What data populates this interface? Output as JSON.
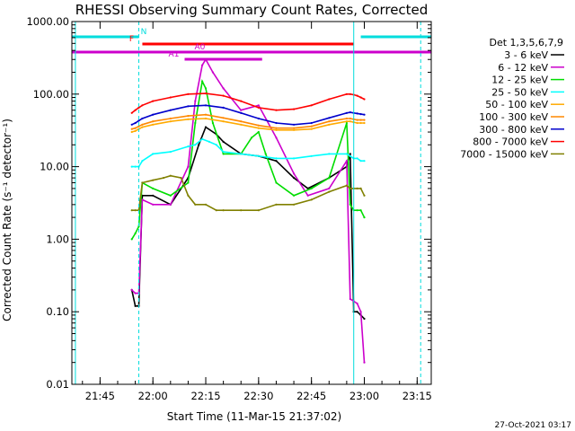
{
  "title": "RHESSI Observing Summary Count Rates, Corrected",
  "xlabel": "Start Time (11-Mar-15 21:37:02)",
  "ylabel": "Corrected Count Rate (s⁻¹ detector⁻¹)",
  "footer_date": "27-Oct-2021 03:17",
  "chart_data": {
    "type": "line",
    "title": "RHESSI Observing Summary Count Rates, Corrected",
    "xlabel": "Start Time (11-Mar-15 21:37:02)",
    "ylabel": "Corrected Count Rate (s^-1 detector^-1)",
    "yscale": "log",
    "ylim": [
      0.01,
      1000
    ],
    "xlim_minutes_of_day": [
      1297,
      1399
    ],
    "x_ticks": [
      {
        "label": "21:45",
        "t": 1305
      },
      {
        "label": "22:00",
        "t": 1320
      },
      {
        "label": "22:15",
        "t": 1335
      },
      {
        "label": "22:30",
        "t": 1350
      },
      {
        "label": "22:45",
        "t": 1365
      },
      {
        "label": "23:00",
        "t": 1380
      },
      {
        "label": "23:15",
        "t": 1395
      }
    ],
    "y_ticks": [
      {
        "label": "1000.00",
        "v": 1000
      },
      {
        "label": "100.00",
        "v": 100
      },
      {
        "label": "10.00",
        "v": 10
      },
      {
        "label": "1.00",
        "v": 1
      },
      {
        "label": "0.10",
        "v": 0.1
      },
      {
        "label": "0.01",
        "v": 0.01
      }
    ],
    "legend_title": "Det 1,3,5,6,7,9",
    "legend_placement": "right",
    "series": [
      {
        "name": "3 - 6 keV",
        "color": "#000000",
        "x": [
          "21:54",
          "21:55",
          "21:56",
          "21:57",
          "22:00",
          "22:05",
          "22:10",
          "22:13",
          "22:15",
          "22:18",
          "22:20",
          "22:25",
          "22:30",
          "22:35",
          "22:40",
          "22:44",
          "22:50",
          "22:55",
          "22:56",
          "22:57",
          "22:58",
          "22:59",
          "23:00"
        ],
        "y": [
          0.2,
          0.12,
          0.12,
          4,
          4,
          3,
          7,
          20,
          35,
          28,
          22,
          15,
          14,
          12,
          7,
          5,
          7,
          10,
          15,
          0.1,
          0.1,
          0.09,
          0.08
        ]
      },
      {
        "name": "6 - 12 keV",
        "color": "#cc00cc",
        "x": [
          "21:54",
          "21:55",
          "21:56",
          "21:57",
          "22:00",
          "22:05",
          "22:10",
          "22:12",
          "22:14",
          "22:15",
          "22:17",
          "22:20",
          "22:25",
          "22:30",
          "22:35",
          "22:40",
          "22:44",
          "22:50",
          "22:55",
          "22:56",
          "22:57",
          "22:58",
          "22:59",
          "23:00"
        ],
        "y": [
          0.2,
          0.18,
          0.18,
          3.5,
          3,
          3,
          10,
          80,
          250,
          300,
          200,
          120,
          60,
          70,
          25,
          8,
          4,
          5,
          12,
          0.15,
          0.14,
          0.13,
          0.1,
          0.02
        ]
      },
      {
        "name": "12 - 25 keV",
        "color": "#00dd00",
        "x": [
          "21:54",
          "21:55",
          "21:56",
          "21:57",
          "22:00",
          "22:05",
          "22:10",
          "22:12",
          "22:14",
          "22:15",
          "22:17",
          "22:20",
          "22:25",
          "22:28",
          "22:30",
          "22:32",
          "22:35",
          "22:40",
          "22:45",
          "22:50",
          "22:55",
          "22:56",
          "22:57",
          "22:58",
          "22:59",
          "23:00"
        ],
        "y": [
          1,
          1.2,
          1.5,
          6,
          5,
          4,
          6,
          40,
          150,
          120,
          40,
          15,
          15,
          25,
          30,
          15,
          6,
          4,
          5,
          7,
          40,
          3,
          2.5,
          2.5,
          2.5,
          2
        ]
      },
      {
        "name": "25 - 50 keV",
        "color": "#00ffff",
        "x": [
          "21:54",
          "21:55",
          "21:56",
          "21:57",
          "22:00",
          "22:05",
          "22:10",
          "22:12",
          "22:14",
          "22:16",
          "22:18",
          "22:20",
          "22:25",
          "22:30",
          "22:35",
          "22:40",
          "22:45",
          "22:50",
          "22:55",
          "22:56",
          "22:57",
          "22:58",
          "22:59",
          "23:00"
        ],
        "y": [
          10,
          10,
          10,
          12,
          15,
          16,
          19,
          20,
          24,
          22,
          20,
          16,
          15,
          14,
          13,
          13,
          14,
          15,
          15,
          14,
          13,
          13,
          12,
          12
        ]
      },
      {
        "name": "50 - 100 keV",
        "color": "#ffaa00",
        "x": [
          "21:54",
          "21:55",
          "21:56",
          "21:57",
          "22:00",
          "22:05",
          "22:10",
          "22:15",
          "22:20",
          "22:25",
          "22:30",
          "22:35",
          "22:40",
          "22:45",
          "22:50",
          "22:55",
          "22:56",
          "22:57",
          "22:58",
          "22:59",
          "23:00"
        ],
        "y": [
          30,
          31,
          33,
          35,
          38,
          42,
          45,
          46,
          42,
          38,
          34,
          32,
          32,
          33,
          38,
          42,
          42,
          41,
          40,
          40,
          40
        ]
      },
      {
        "name": "100 - 300 keV",
        "color": "#ff8800",
        "x": [
          "21:54",
          "21:55",
          "21:56",
          "21:57",
          "22:00",
          "22:05",
          "22:10",
          "22:15",
          "22:20",
          "22:25",
          "22:30",
          "22:35",
          "22:40",
          "22:45",
          "22:50",
          "22:55",
          "22:56",
          "22:57",
          "22:58",
          "22:59",
          "23:00"
        ],
        "y": [
          33,
          34,
          36,
          38,
          42,
          46,
          50,
          52,
          47,
          42,
          37,
          34,
          34,
          36,
          42,
          46,
          46,
          45,
          44,
          44,
          44
        ]
      },
      {
        "name": "300 - 800 keV",
        "color": "#0000cc",
        "x": [
          "21:54",
          "21:55",
          "21:56",
          "21:57",
          "22:00",
          "22:05",
          "22:10",
          "22:15",
          "22:20",
          "22:25",
          "22:30",
          "22:35",
          "22:40",
          "22:45",
          "22:50",
          "22:55",
          "22:56",
          "22:57",
          "22:58",
          "22:59",
          "23:00"
        ],
        "y": [
          38,
          40,
          43,
          46,
          52,
          60,
          68,
          70,
          65,
          55,
          46,
          40,
          38,
          40,
          47,
          55,
          56,
          55,
          54,
          53,
          52
        ]
      },
      {
        "name": "800 - 7000 keV",
        "color": "#ff0000",
        "x": [
          "21:54",
          "21:55",
          "21:56",
          "21:57",
          "22:00",
          "22:05",
          "22:10",
          "22:15",
          "22:20",
          "22:25",
          "22:30",
          "22:35",
          "22:40",
          "22:45",
          "22:50",
          "22:55",
          "22:56",
          "22:57",
          "22:58",
          "22:59",
          "23:00"
        ],
        "y": [
          55,
          60,
          65,
          70,
          80,
          90,
          100,
          102,
          95,
          80,
          65,
          60,
          62,
          70,
          85,
          100,
          100,
          98,
          95,
          90,
          85
        ]
      },
      {
        "name": "7000 - 15000 keV",
        "color": "#808000",
        "x": [
          "21:54",
          "21:55",
          "21:56",
          "21:57",
          "22:00",
          "22:03",
          "22:05",
          "22:08",
          "22:10",
          "22:12",
          "22:15",
          "22:18",
          "22:20",
          "22:25",
          "22:30",
          "22:35",
          "22:40",
          "22:45",
          "22:50",
          "22:55",
          "22:56",
          "22:57",
          "22:58",
          "22:59",
          "23:00"
        ],
        "y": [
          2.5,
          2.5,
          2.5,
          6,
          6.5,
          7,
          7.5,
          7,
          4,
          3,
          3,
          2.5,
          2.5,
          2.5,
          2.5,
          3,
          3,
          3.5,
          4.5,
          5.5,
          5,
          5,
          5,
          5,
          4
        ]
      }
    ],
    "flags": [
      {
        "label": "N",
        "color": "#00dddd",
        "segments": [
          [
            "21:37",
            "21:56"
          ],
          [
            "22:59",
            "23:19"
          ]
        ]
      },
      {
        "label": "F",
        "color": "#ff0000",
        "segments": [
          [
            "21:57",
            "22:57"
          ]
        ]
      },
      {
        "label": "A0",
        "color": "#cc00cc",
        "segments": [
          [
            "22:10",
            "22:20"
          ]
        ]
      },
      {
        "label": "A1",
        "color": "#cc00cc",
        "segments": [
          [
            "22:09",
            "22:31"
          ]
        ]
      },
      {
        "label": "",
        "color": "#cc00cc",
        "segments": [
          [
            "21:37",
            "23:19"
          ]
        ]
      }
    ],
    "vertical_lines": [
      {
        "t": "21:38",
        "style": "solid",
        "color": "#00dddd"
      },
      {
        "t": "21:56",
        "style": "dashed",
        "color": "#00dddd"
      },
      {
        "t": "22:57",
        "style": "solid",
        "color": "#00dddd"
      },
      {
        "t": "23:16",
        "style": "dashed",
        "color": "#00dddd"
      }
    ]
  }
}
